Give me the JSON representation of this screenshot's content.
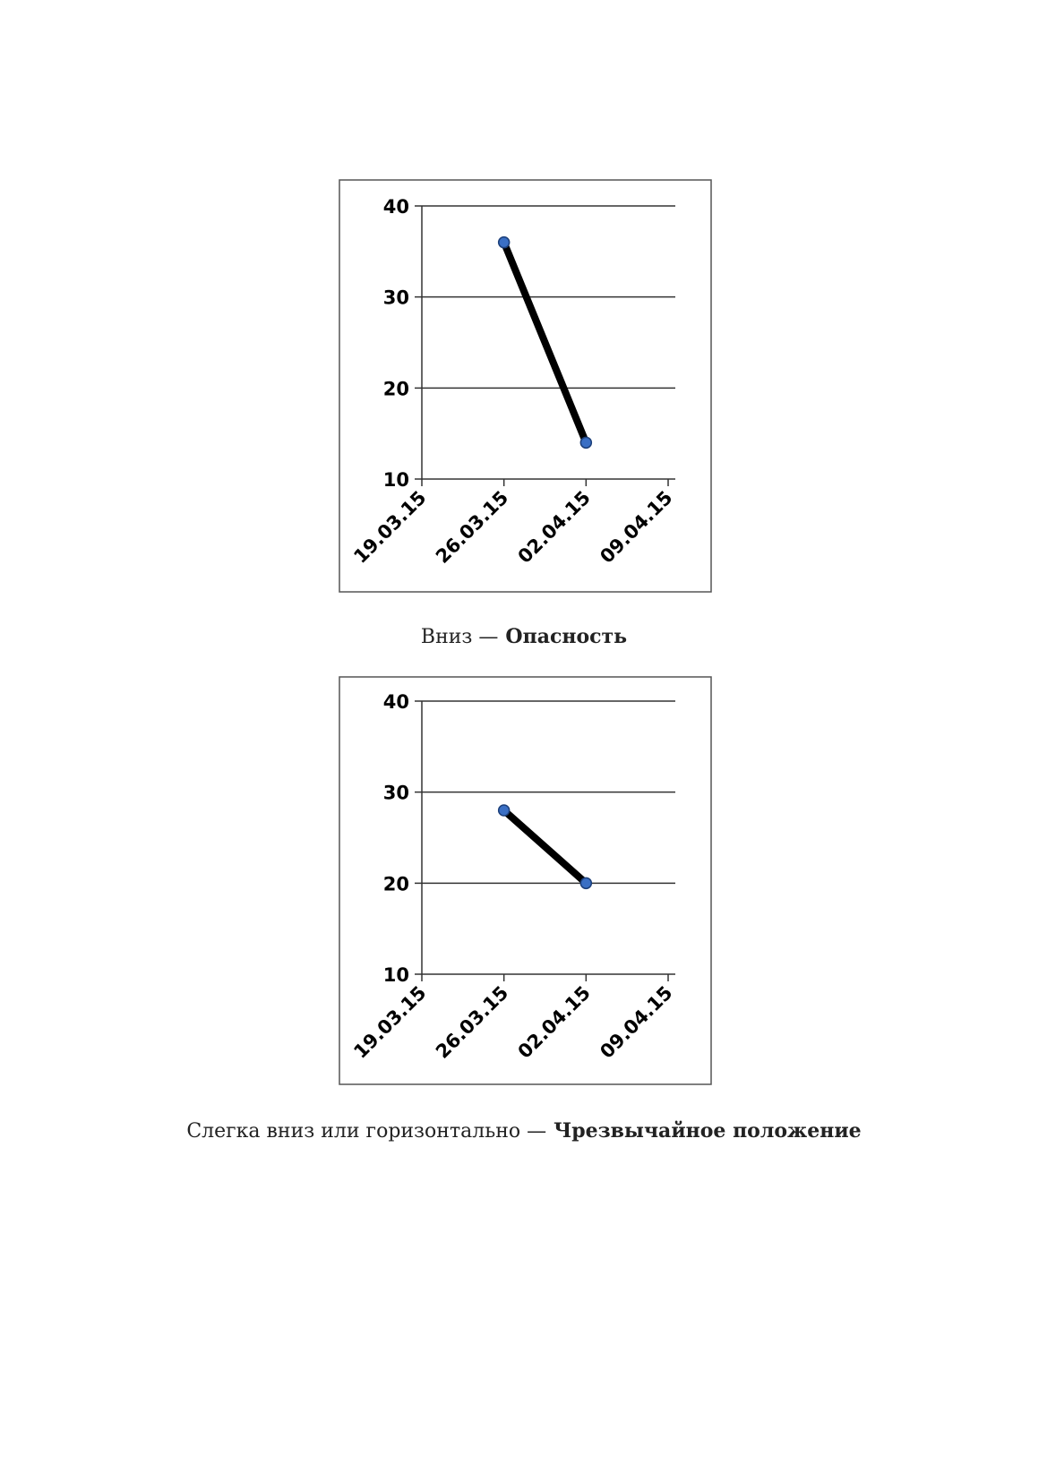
{
  "chart_data": [
    {
      "type": "line",
      "categories": [
        "19.03.15",
        "26.03.15",
        "02.04.15",
        "09.04.15"
      ],
      "series": [
        {
          "color": "#000000",
          "marker_color": "#3a6fc4",
          "values": [
            null,
            36,
            14,
            null
          ]
        }
      ],
      "ylim": [
        10,
        40
      ],
      "yticks": [
        10,
        20,
        30,
        40
      ],
      "grid": true
    },
    {
      "type": "line",
      "categories": [
        "19.03.15",
        "26.03.15",
        "02.04.15",
        "09.04.15"
      ],
      "series": [
        {
          "color": "#000000",
          "marker_color": "#3a6fc4",
          "values": [
            null,
            28,
            20,
            null
          ]
        }
      ],
      "ylim": [
        10,
        40
      ],
      "yticks": [
        10,
        20,
        30,
        40
      ],
      "grid": true
    }
  ],
  "captions": [
    {
      "text": "Вниз —",
      "bold": "Опасность"
    },
    {
      "text": "Слегка вниз или горизонтально —",
      "bold": "Чрезвычайное положение"
    }
  ]
}
